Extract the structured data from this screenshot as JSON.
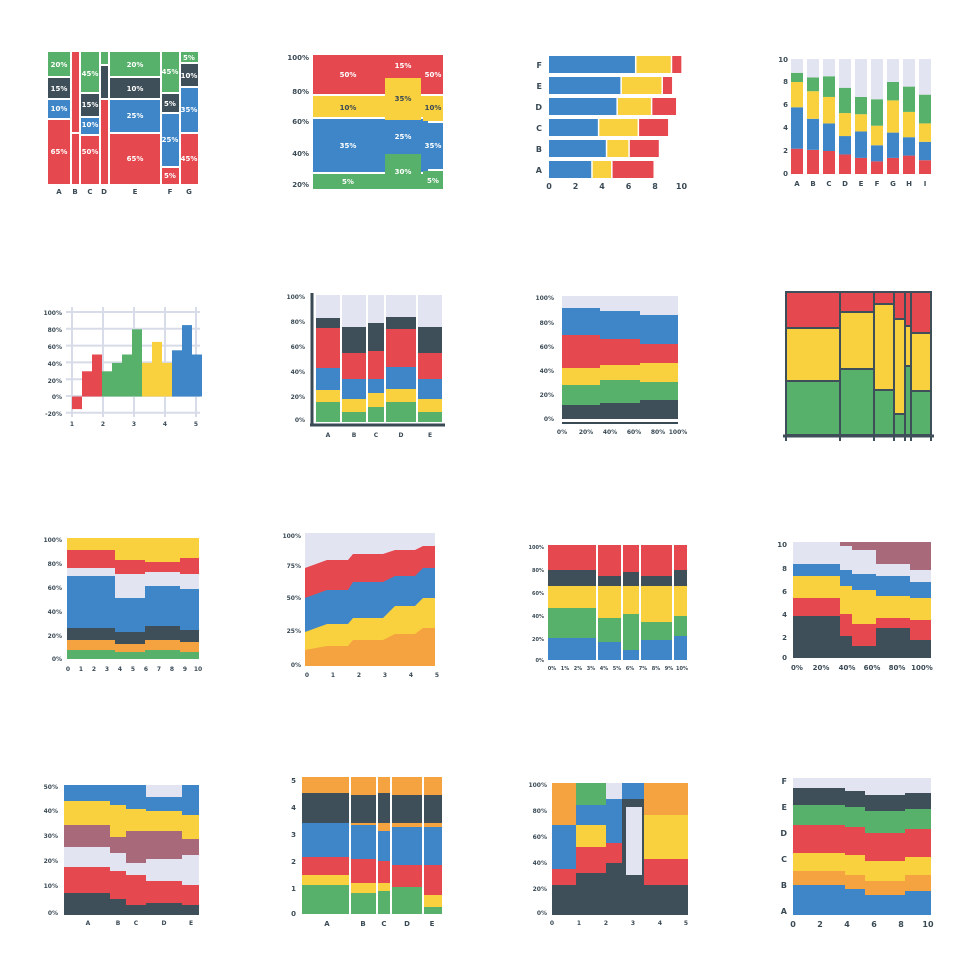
{
  "page": {
    "background": "#ffffff"
  },
  "palette": {
    "red": "#e5484f",
    "green": "#58b16a",
    "blue": "#3e86c8",
    "yellow": "#f9d03d",
    "dark": "#3f4f59",
    "light": "#e3e4f1",
    "orange": "#f5a240",
    "mauve": "#a86a7a",
    "axis": "#3a4a55"
  },
  "chart_data": [
    {
      "type": "marimekko",
      "categories": [
        "A",
        "B",
        "C",
        "D",
        "E",
        "F",
        "G"
      ],
      "annotations": [
        "20%",
        "45%",
        "20%",
        "45%",
        "5%",
        "10%",
        "15%",
        "15%",
        "10%",
        "10%",
        "10%",
        "5%",
        "35%",
        "25%",
        "25%",
        "65%",
        "50%",
        "65%",
        "45%",
        "5%"
      ]
    },
    {
      "type": "marimekko",
      "yticks": [
        "100%",
        "80%",
        "60%",
        "40%",
        "20%"
      ],
      "annotations": [
        "50%",
        "15%",
        "50%",
        "35%",
        "10%",
        "10%",
        "35%",
        "25%",
        "35%",
        "30%",
        "5%",
        "5%"
      ]
    },
    {
      "type": "bar",
      "orientation": "horizontal",
      "stacked": true,
      "categories": [
        "F",
        "E",
        "D",
        "C",
        "B",
        "A"
      ],
      "xticks": [
        "0",
        "2",
        "4",
        "6",
        "8",
        "10"
      ],
      "series": [
        {
          "values": [
            6.6,
            5.5,
            5.2,
            3.8,
            4.4,
            3.3
          ]
        },
        {
          "values": [
            2.7,
            3.1,
            2.6,
            3.0,
            1.7,
            1.5
          ]
        },
        {
          "values": [
            0.8,
            0.8,
            1.9,
            2.3,
            2.3,
            3.2
          ]
        }
      ]
    },
    {
      "type": "bar",
      "stacked": true,
      "categories": [
        "A",
        "B",
        "C",
        "D",
        "E",
        "F",
        "G",
        "H",
        "I"
      ],
      "yticks": [
        "0",
        "2",
        "4",
        "6",
        "8",
        "10"
      ],
      "series": [
        {
          "values": [
            2.2,
            2.1,
            2.0,
            1.7,
            1.4,
            1.1,
            1.4,
            1.6,
            1.2
          ]
        },
        {
          "values": [
            3.6,
            2.7,
            2.4,
            1.6,
            2.3,
            1.4,
            2.2,
            1.6,
            1.6
          ]
        },
        {
          "values": [
            2.2,
            2.4,
            2.3,
            2.0,
            1.5,
            1.7,
            2.8,
            2.2,
            1.6
          ]
        },
        {
          "values": [
            0.8,
            1.2,
            1.8,
            2.2,
            1.5,
            2.3,
            1.6,
            2.2,
            2.5
          ]
        },
        {
          "values": [
            1.2,
            1.6,
            1.5,
            2.5,
            3.3,
            3.5,
            2.0,
            2.4,
            3.1
          ]
        }
      ]
    },
    {
      "type": "bar",
      "yticks": [
        "100%",
        "80%",
        "60%",
        "40%",
        "20%",
        "0%",
        "-20%"
      ],
      "xticks": [
        "1",
        "2",
        "3",
        "4",
        "5"
      ],
      "values": [
        -15,
        30,
        50,
        30,
        40,
        50,
        80,
        40,
        65,
        40,
        55,
        85,
        50
      ]
    },
    {
      "type": "bar",
      "stacked": true,
      "categories": [
        "A",
        "B",
        "C",
        "D",
        "E"
      ],
      "yticks": [
        "100%",
        "80%",
        "60%",
        "40%",
        "20%",
        "0%"
      ]
    },
    {
      "type": "area",
      "stacked": true,
      "yticks": [
        "100%",
        "80%",
        "60%",
        "40%",
        "20%",
        "0%"
      ],
      "xticks": [
        "0%",
        "20%",
        "40%",
        "60%",
        "80%",
        "100%"
      ]
    },
    {
      "type": "marimekko"
    },
    {
      "type": "area",
      "stacked": true,
      "yticks": [
        "100%",
        "80%",
        "60%",
        "40%",
        "20%",
        "0%"
      ],
      "xticks": [
        "0",
        "1",
        "2",
        "3",
        "4",
        "5",
        "6",
        "7",
        "8",
        "9",
        "10"
      ]
    },
    {
      "type": "area",
      "stacked": true,
      "yticks": [
        "100%",
        "75%",
        "50%",
        "25%",
        "0%"
      ],
      "xticks": [
        "0",
        "1",
        "2",
        "3",
        "4",
        "5"
      ]
    },
    {
      "type": "marimekko",
      "yticks": [
        "100%",
        "80%",
        "60%",
        "40%",
        "20%",
        "0%"
      ],
      "xticks": [
        "0%",
        "1%",
        "2%",
        "3%",
        "4%",
        "5%",
        "6%",
        "7%",
        "8%",
        "9%",
        "10%"
      ]
    },
    {
      "type": "area",
      "stacked": true,
      "yticks": [
        "10",
        "8",
        "6",
        "4",
        "2",
        "0"
      ],
      "xticks": [
        "0%",
        "20%",
        "40%",
        "60%",
        "80%",
        "100%"
      ]
    },
    {
      "type": "area",
      "stacked": true,
      "yticks": [
        "50%",
        "40%",
        "30%",
        "20%",
        "10%",
        "0%"
      ],
      "xticks": [
        "A",
        "B",
        "C",
        "D",
        "E"
      ]
    },
    {
      "type": "marimekko",
      "yticks": [
        "5",
        "4",
        "3",
        "2",
        "1",
        "0"
      ],
      "xticks": [
        "A",
        "B",
        "C",
        "D",
        "E"
      ]
    },
    {
      "type": "marimekko",
      "yticks": [
        "100%",
        "80%",
        "60%",
        "40%",
        "20%",
        "0%"
      ],
      "xticks": [
        "0",
        "1",
        "2",
        "3",
        "4",
        "5"
      ]
    },
    {
      "type": "area",
      "stacked": true,
      "yticks": [
        "F",
        "E",
        "D",
        "C",
        "B",
        "A"
      ],
      "xticks": [
        "0",
        "2",
        "4",
        "6",
        "8",
        "10"
      ]
    }
  ]
}
